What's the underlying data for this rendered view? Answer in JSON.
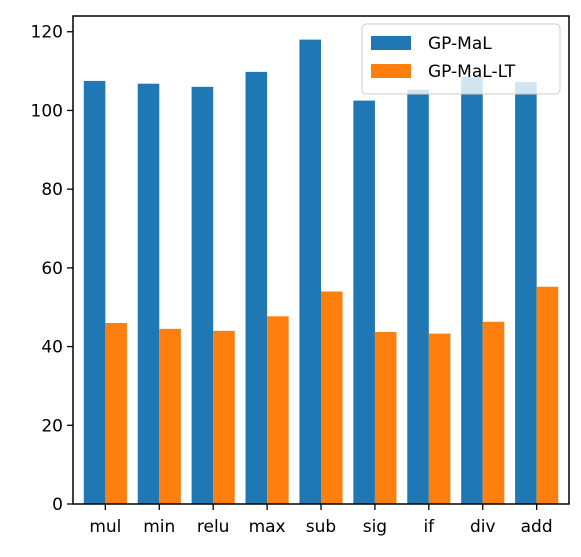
{
  "chart_data": {
    "type": "bar",
    "categories": [
      "mul",
      "min",
      "relu",
      "max",
      "sub",
      "sig",
      "if",
      "div",
      "add"
    ],
    "series": [
      {
        "name": "GP-MaL",
        "color": "#1f77b4",
        "values": [
          107.5,
          106.8,
          106.0,
          109.8,
          118.0,
          102.5,
          105.3,
          108.5,
          107.2
        ]
      },
      {
        "name": "GP-MaL-LT",
        "color": "#ff7f0e",
        "values": [
          46.0,
          44.5,
          44.0,
          47.7,
          54.0,
          43.7,
          43.3,
          46.3,
          55.2
        ]
      }
    ],
    "ylim": [
      0,
      124
    ],
    "yticks": [
      0,
      20,
      40,
      60,
      80,
      100,
      120
    ],
    "legend_position": "top-right",
    "grid": false,
    "xlabel": "",
    "ylabel": "",
    "title": ""
  }
}
